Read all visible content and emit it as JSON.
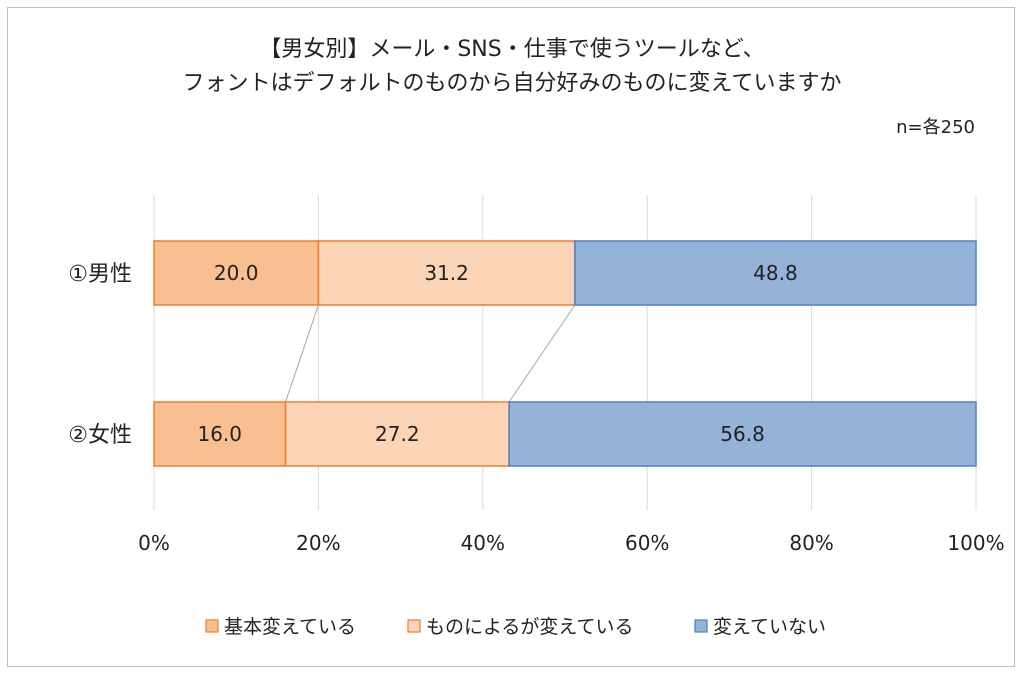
{
  "chart_data": {
    "type": "bar",
    "orientation": "horizontal",
    "stacked": true,
    "percent_stacked": true,
    "title": "【男女別】メール・SNS・仕事で使うツールなど、",
    "title_line2": "フォントはデフォルトのものから自分好みのものに変えていますか",
    "sample_note": "n=各250",
    "categories": [
      "①男性",
      "②女性"
    ],
    "series": [
      {
        "name": "基本変えている",
        "values": [
          20.0,
          16.0
        ],
        "value_labels": [
          "20.0",
          "16.0"
        ],
        "color": "#F8BF90",
        "border": "#ED7D31"
      },
      {
        "name": "ものによるが変えている",
        "values": [
          31.2,
          27.2
        ],
        "value_labels": [
          "31.2",
          "27.2"
        ],
        "color": "#FBD5B5",
        "border": "#ED7D31"
      },
      {
        "name": "変えていない",
        "values": [
          48.8,
          56.8
        ],
        "value_labels": [
          "48.8",
          "56.8"
        ],
        "color": "#95B3D7",
        "border": "#4F81BD"
      }
    ],
    "xlim": [
      0,
      100
    ],
    "x_ticks": [
      0,
      20,
      40,
      60,
      80,
      100
    ],
    "x_tick_labels": [
      "0%",
      "20%",
      "40%",
      "60%",
      "80%",
      "100%"
    ],
    "grid": true,
    "series_lines": true,
    "legend": "bottom"
  }
}
